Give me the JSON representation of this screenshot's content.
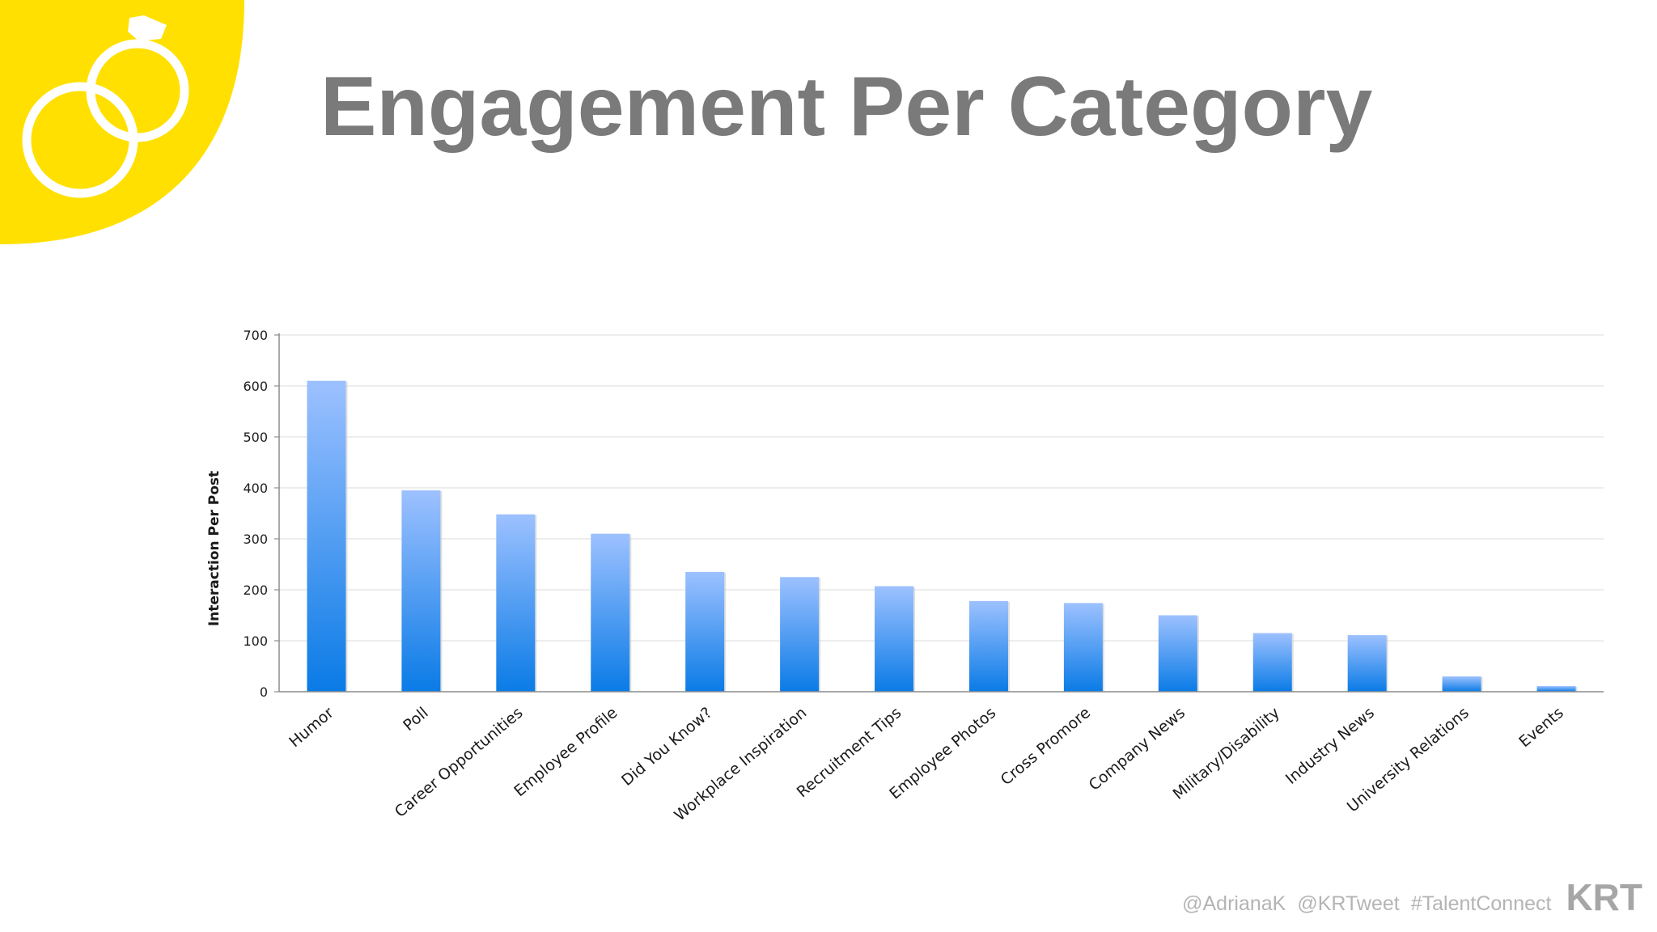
{
  "slide": {
    "title": "Engagement Per Category",
    "accent_color": "#FFE000",
    "title_color": "#7a7a7a"
  },
  "badge": {
    "icon": "interlocking-rings-icon"
  },
  "footer": {
    "handle_1": "@AdrianaK",
    "handle_2": "@KRTweet",
    "hashtag": "#TalentConnect",
    "brand": "KRT"
  },
  "chart_data": {
    "type": "bar",
    "title": "",
    "xlabel": "",
    "ylabel": "Interaction Per Post",
    "ylim": [
      0,
      700
    ],
    "yticks": [
      0,
      100,
      200,
      300,
      400,
      500,
      600,
      700
    ],
    "grid": true,
    "legend": "none",
    "bar_color_top": "#9dc1ff",
    "bar_color_bottom": "#0a7be6",
    "categories": [
      "Humor",
      "Poll",
      "Career Opportunities",
      "Employee Profile",
      "Did You Know?",
      "Workplace Inspiration",
      "Recruitment Tips",
      "Employee Photos",
      "Cross Promore",
      "Company News",
      "Military/Disability",
      "Industry News",
      "University Relations",
      "Events"
    ],
    "values": [
      610,
      395,
      348,
      310,
      235,
      225,
      207,
      178,
      174,
      150,
      115,
      111,
      30,
      11
    ]
  }
}
